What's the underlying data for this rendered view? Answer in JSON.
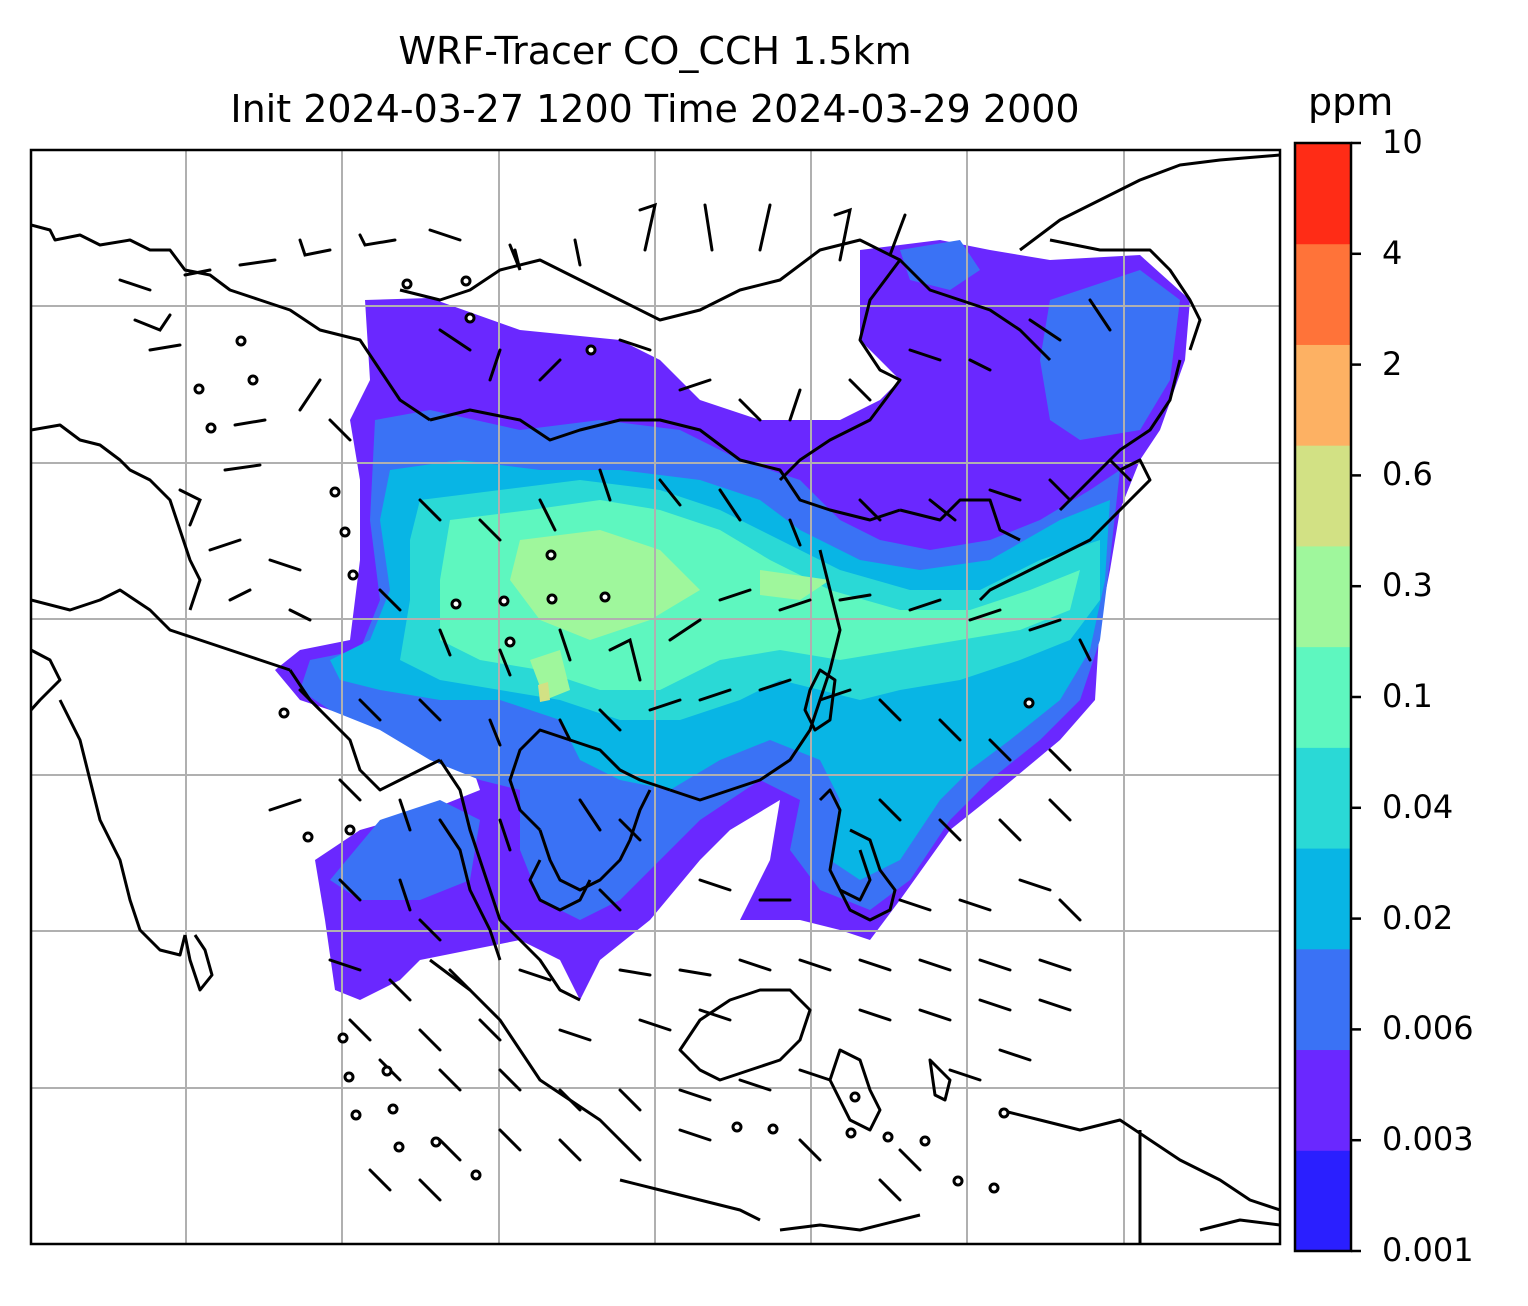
{
  "title": {
    "line1": "WRF-Tracer CO_CCH 1.5km",
    "line2": "Init 2024-03-27 1200 Time 2024-03-29 2000"
  },
  "colorbar": {
    "unit": "ppm",
    "ticks": [
      "10",
      "4",
      "2",
      "0.6",
      "0.3",
      "0.1",
      "0.04",
      "0.02",
      "0.006",
      "0.003",
      "0.001"
    ],
    "colors": [
      "#2a1fff",
      "#6a28ff",
      "#3a72f5",
      "#08b5e5",
      "#2ad9d6",
      "#5ef7bf",
      "#9ff79c",
      "#d2e184",
      "#fdb163",
      "#ff7339",
      "#ff2c16"
    ]
  },
  "map": {
    "gridlines": true,
    "grid_color": "#b0b0b0",
    "coastline_color": "#000000",
    "features": [
      "coastlines",
      "wind-barbs",
      "co-tracer-shading"
    ]
  }
}
